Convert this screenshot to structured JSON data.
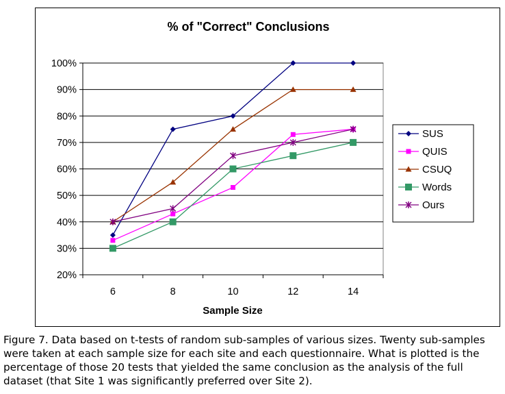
{
  "chart_data": {
    "type": "line",
    "title": "% of \"Correct\" Conclusions",
    "xlabel": "Sample Size",
    "ylabel": "",
    "x": [
      6,
      8,
      10,
      12,
      14
    ],
    "x_tick_labels": [
      "6",
      "8",
      "10",
      "12",
      "14"
    ],
    "ylim": [
      20,
      100
    ],
    "y_ticks": [
      20,
      30,
      40,
      50,
      60,
      70,
      80,
      90,
      100
    ],
    "y_tick_labels": [
      "20%",
      "30%",
      "40%",
      "50%",
      "60%",
      "70%",
      "80%",
      "90%",
      "100%"
    ],
    "grid": "horizontal",
    "legend_position": "right",
    "series": [
      {
        "name": "SUS",
        "color": "#000080",
        "marker": "diamond",
        "values": [
          35,
          75,
          80,
          100,
          100
        ]
      },
      {
        "name": "QUIS",
        "color": "#FF00FF",
        "marker": "square",
        "values": [
          33,
          43,
          53,
          73,
          75
        ]
      },
      {
        "name": "CSUQ",
        "color": "#993300",
        "marker": "triangle",
        "values": [
          40,
          55,
          75,
          90,
          90
        ]
      },
      {
        "name": "Words",
        "color": "#339966",
        "marker": "square-large",
        "values": [
          30,
          40,
          60,
          65,
          70
        ]
      },
      {
        "name": "Ours",
        "color": "#800080",
        "marker": "star",
        "values": [
          40,
          45,
          65,
          70,
          75
        ]
      }
    ]
  },
  "caption": "Figure 7.  Data based on t-tests of random sub-samples of various sizes.  Twenty sub-samples were taken at each sample size for each site and each questionnaire.  What is plotted is the percentage of those 20 tests that yielded the same conclusion as the analysis of the full dataset (that Site 1 was significantly preferred over Site 2)."
}
